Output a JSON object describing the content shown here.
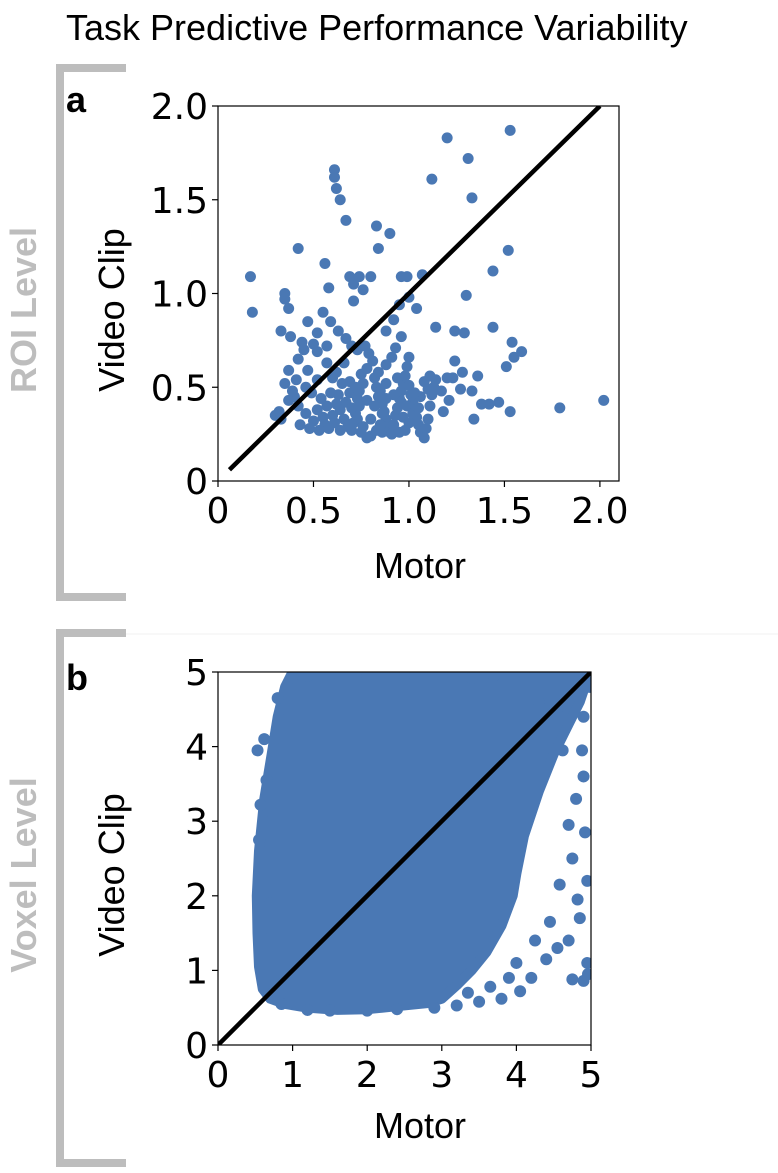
{
  "figure": {
    "title": "Task Predictive Performance Variability",
    "colors": {
      "points": "#4a78b4",
      "line": "#000000",
      "bracket": "#bdbdbd"
    }
  },
  "chart_data": [
    {
      "type": "scatter",
      "panel_letter": "a",
      "level_label": "ROI Level",
      "xlabel": "Motor",
      "ylabel": "Video Clip",
      "xlim": [
        0,
        2.1
      ],
      "ylim": [
        0,
        2.0
      ],
      "xticks": [
        0,
        0.5,
        1.0,
        1.5,
        2.0
      ],
      "xtick_labels": [
        "0",
        "0.5",
        "1.0",
        "1.5",
        "2.0"
      ],
      "yticks": [
        0,
        0.5,
        1.0,
        1.5,
        2.0
      ],
      "ytick_labels": [
        "0",
        "0.5",
        "1.0",
        "1.5",
        "2.0"
      ],
      "grid": false,
      "reference_line": [
        [
          0.06,
          0.06
        ],
        [
          2.0,
          2.0
        ]
      ],
      "points": [
        [
          0.17,
          1.09
        ],
        [
          0.18,
          0.9
        ],
        [
          0.35,
          1.0
        ],
        [
          0.35,
          0.97
        ],
        [
          0.37,
          0.92
        ],
        [
          0.42,
          1.24
        ],
        [
          0.47,
          0.85
        ],
        [
          0.44,
          0.74
        ],
        [
          0.33,
          0.8
        ],
        [
          0.38,
          0.77
        ],
        [
          0.37,
          0.59
        ],
        [
          0.42,
          0.65
        ],
        [
          0.47,
          0.59
        ],
        [
          0.52,
          0.54
        ],
        [
          0.52,
          0.69
        ],
        [
          0.57,
          0.63
        ],
        [
          0.57,
          0.72
        ],
        [
          0.52,
          0.79
        ],
        [
          0.5,
          0.73
        ],
        [
          0.45,
          0.7
        ],
        [
          0.35,
          0.52
        ],
        [
          0.4,
          0.45
        ],
        [
          0.37,
          0.43
        ],
        [
          0.3,
          0.35
        ],
        [
          0.33,
          0.33
        ],
        [
          0.32,
          0.37
        ],
        [
          0.42,
          0.4
        ],
        [
          0.46,
          0.36
        ],
        [
          0.5,
          0.32
        ],
        [
          0.52,
          0.38
        ],
        [
          0.55,
          0.34
        ],
        [
          0.56,
          0.3
        ],
        [
          0.58,
          0.28
        ],
        [
          0.61,
          0.31
        ],
        [
          0.6,
          0.35
        ],
        [
          0.62,
          0.41
        ],
        [
          0.64,
          0.38
        ],
        [
          0.66,
          0.33
        ],
        [
          0.68,
          0.29
        ],
        [
          0.7,
          0.27
        ],
        [
          0.71,
          0.31
        ],
        [
          0.72,
          0.36
        ],
        [
          0.73,
          0.44
        ],
        [
          0.74,
          0.48
        ],
        [
          0.76,
          0.52
        ],
        [
          0.75,
          0.57
        ],
        [
          0.78,
          0.6
        ],
        [
          0.79,
          0.68
        ],
        [
          0.81,
          0.64
        ],
        [
          0.82,
          0.55
        ],
        [
          0.83,
          0.5
        ],
        [
          0.84,
          0.45
        ],
        [
          0.86,
          0.41
        ],
        [
          0.87,
          0.37
        ],
        [
          0.88,
          0.33
        ],
        [
          0.89,
          0.29
        ],
        [
          0.9,
          0.26
        ],
        [
          0.92,
          0.3
        ],
        [
          0.93,
          0.35
        ],
        [
          0.94,
          0.39
        ],
        [
          0.95,
          0.44
        ],
        [
          0.96,
          0.48
        ],
        [
          0.97,
          0.52
        ],
        [
          0.98,
          0.56
        ],
        [
          0.99,
          0.61
        ],
        [
          1.0,
          0.66
        ],
        [
          1.01,
          0.46
        ],
        [
          1.02,
          0.42
        ],
        [
          1.03,
          0.38
        ],
        [
          1.04,
          0.34
        ],
        [
          1.05,
          0.3
        ],
        [
          1.06,
          0.26
        ],
        [
          1.08,
          0.23
        ],
        [
          1.09,
          0.28
        ],
        [
          1.1,
          0.33
        ],
        [
          1.11,
          0.4
        ],
        [
          1.12,
          0.46
        ],
        [
          1.13,
          0.5
        ],
        [
          1.14,
          0.54
        ],
        [
          0.8,
          0.24
        ],
        [
          0.83,
          0.27
        ],
        [
          0.86,
          0.26
        ],
        [
          0.91,
          0.25
        ],
        [
          0.95,
          0.26
        ],
        [
          0.98,
          0.27
        ],
        [
          0.69,
          0.47
        ],
        [
          0.65,
          0.52
        ],
        [
          0.62,
          0.58
        ],
        [
          0.6,
          0.55
        ],
        [
          0.63,
          0.46
        ],
        [
          0.67,
          0.42
        ],
        [
          0.7,
          0.39
        ],
        [
          0.73,
          0.33
        ],
        [
          0.76,
          0.29
        ],
        [
          0.78,
          0.23
        ],
        [
          0.84,
          0.58
        ],
        [
          0.88,
          0.62
        ],
        [
          0.91,
          0.66
        ],
        [
          0.93,
          0.71
        ],
        [
          0.88,
          0.52
        ],
        [
          0.85,
          0.48
        ],
        [
          0.92,
          0.46
        ],
        [
          0.96,
          0.42
        ],
        [
          0.99,
          0.4
        ],
        [
          1.02,
          0.36
        ],
        [
          1.05,
          0.39
        ],
        [
          0.61,
          1.66
        ],
        [
          0.61,
          1.62
        ],
        [
          0.62,
          1.56
        ],
        [
          0.64,
          1.5
        ],
        [
          0.67,
          1.39
        ],
        [
          0.69,
          1.09
        ],
        [
          0.71,
          1.05
        ],
        [
          0.58,
          1.03
        ],
        [
          0.55,
          0.9
        ],
        [
          0.59,
          0.85
        ],
        [
          0.63,
          0.8
        ],
        [
          0.67,
          0.76
        ],
        [
          0.7,
          0.72
        ],
        [
          0.73,
          0.7
        ],
        [
          0.77,
          0.72
        ],
        [
          0.56,
          1.16
        ],
        [
          0.71,
          0.96
        ],
        [
          0.74,
          1.09
        ],
        [
          0.76,
          1.02
        ],
        [
          0.8,
          1.09
        ],
        [
          0.84,
          1.24
        ],
        [
          0.83,
          1.36
        ],
        [
          0.9,
          1.32
        ],
        [
          0.96,
          1.09
        ],
        [
          0.99,
          1.09
        ],
        [
          1.0,
          0.98
        ],
        [
          0.95,
          0.94
        ],
        [
          0.92,
          0.86
        ],
        [
          0.88,
          0.8
        ],
        [
          0.96,
          0.77
        ],
        [
          1.04,
          0.92
        ],
        [
          1.07,
          1.1
        ],
        [
          1.12,
          1.61
        ],
        [
          1.2,
          1.83
        ],
        [
          1.31,
          1.72
        ],
        [
          1.33,
          1.51
        ],
        [
          1.44,
          1.12
        ],
        [
          1.53,
          1.87
        ],
        [
          1.52,
          1.23
        ],
        [
          1.3,
          0.99
        ],
        [
          1.14,
          0.82
        ],
        [
          1.24,
          0.8
        ],
        [
          1.29,
          0.79
        ],
        [
          1.24,
          0.64
        ],
        [
          1.2,
          0.55
        ],
        [
          1.27,
          0.49
        ],
        [
          1.33,
          0.48
        ],
        [
          1.36,
          0.56
        ],
        [
          1.38,
          0.41
        ],
        [
          1.34,
          0.33
        ],
        [
          1.42,
          0.41
        ],
        [
          1.47,
          0.42
        ],
        [
          1.51,
          0.61
        ],
        [
          1.55,
          0.66
        ],
        [
          1.59,
          0.69
        ],
        [
          1.54,
          0.74
        ],
        [
          1.53,
          0.37
        ],
        [
          1.44,
          0.82
        ],
        [
          1.79,
          0.39
        ],
        [
          2.02,
          0.43
        ],
        [
          1.17,
          0.48
        ],
        [
          1.21,
          0.43
        ],
        [
          1.18,
          0.37
        ],
        [
          1.23,
          0.55
        ],
        [
          1.28,
          0.58
        ],
        [
          0.86,
          0.36
        ],
        [
          0.82,
          0.4
        ],
        [
          0.78,
          0.43
        ],
        [
          0.74,
          0.4
        ],
        [
          0.8,
          0.33
        ],
        [
          0.88,
          0.44
        ],
        [
          0.94,
          0.55
        ],
        [
          1.0,
          0.51
        ],
        [
          1.06,
          0.45
        ],
        [
          1.1,
          0.49
        ],
        [
          1.08,
          0.53
        ],
        [
          1.03,
          0.47
        ],
        [
          0.97,
          0.34
        ],
        [
          0.66,
          0.63
        ],
        [
          0.69,
          0.53
        ],
        [
          0.72,
          0.5
        ],
        [
          0.59,
          0.47
        ],
        [
          0.57,
          0.4
        ],
        [
          0.54,
          0.44
        ],
        [
          0.49,
          0.47
        ],
        [
          0.46,
          0.5
        ],
        [
          0.41,
          0.54
        ],
        [
          0.39,
          0.48
        ],
        [
          0.43,
          0.3
        ],
        [
          0.48,
          0.28
        ],
        [
          0.53,
          0.27
        ],
        [
          0.64,
          0.27
        ],
        [
          0.75,
          0.26
        ],
        [
          0.85,
          0.3
        ],
        [
          1.0,
          0.31
        ],
        [
          1.11,
          0.56
        ]
      ]
    },
    {
      "type": "scatter",
      "panel_letter": "b",
      "level_label": "Voxel Level",
      "xlabel": "Motor",
      "ylabel": "Video Clip",
      "xlim": [
        0,
        5
      ],
      "ylim": [
        0,
        5
      ],
      "xticks": [
        0,
        1,
        2,
        3,
        4,
        5
      ],
      "xtick_labels": [
        "0",
        "1",
        "2",
        "3",
        "4",
        "5"
      ],
      "yticks": [
        0,
        1,
        2,
        3,
        4,
        5
      ],
      "ytick_labels": [
        "0",
        "1",
        "2",
        "3",
        "4",
        "5"
      ],
      "grid": false,
      "reference_line": [
        [
          0,
          0
        ],
        [
          5,
          5
        ]
      ],
      "dense_region": {
        "outline": [
          [
            0.55,
            1.05
          ],
          [
            0.6,
            0.75
          ],
          [
            0.7,
            0.62
          ],
          [
            0.9,
            0.55
          ],
          [
            1.2,
            0.5
          ],
          [
            1.6,
            0.47
          ],
          [
            2.0,
            0.48
          ],
          [
            2.4,
            0.52
          ],
          [
            2.8,
            0.56
          ],
          [
            3.0,
            0.62
          ],
          [
            3.2,
            0.8
          ],
          [
            3.4,
            1.0
          ],
          [
            3.6,
            1.25
          ],
          [
            3.8,
            1.6
          ],
          [
            3.95,
            2.0
          ],
          [
            4.0,
            2.3
          ],
          [
            4.1,
            2.8
          ],
          [
            4.3,
            3.4
          ],
          [
            4.5,
            3.9
          ],
          [
            4.7,
            4.3
          ],
          [
            4.85,
            4.6
          ],
          [
            4.95,
            4.9
          ],
          [
            4.95,
            5.0
          ],
          [
            1.0,
            5.0
          ],
          [
            0.9,
            4.8
          ],
          [
            0.8,
            4.4
          ],
          [
            0.72,
            3.9
          ],
          [
            0.62,
            3.3
          ],
          [
            0.55,
            2.6
          ],
          [
            0.52,
            2.0
          ],
          [
            0.53,
            1.5
          ]
        ],
        "points": [
          [
            0.53,
            3.95
          ],
          [
            0.55,
            2.75
          ],
          [
            0.57,
            3.22
          ],
          [
            0.58,
            1.45
          ],
          [
            0.62,
            4.1
          ],
          [
            0.65,
            3.55
          ],
          [
            0.7,
            1.9
          ],
          [
            0.73,
            0.7
          ],
          [
            0.8,
            4.65
          ],
          [
            1.0,
            4.95
          ],
          [
            1.2,
            4.95
          ],
          [
            1.5,
            4.96
          ],
          [
            2.0,
            4.95
          ],
          [
            2.5,
            4.96
          ],
          [
            3.0,
            4.95
          ],
          [
            3.4,
            4.92
          ],
          [
            3.7,
            4.95
          ],
          [
            4.1,
            4.98
          ],
          [
            4.4,
            4.95
          ],
          [
            4.7,
            4.96
          ],
          [
            4.95,
            4.98
          ],
          [
            4.8,
            4.7
          ],
          [
            4.6,
            4.55
          ],
          [
            4.9,
            4.4
          ],
          [
            4.3,
            4.6
          ],
          [
            4.9,
            3.6
          ],
          [
            4.8,
            3.3
          ],
          [
            4.92,
            2.85
          ],
          [
            4.75,
            2.5
          ],
          [
            4.95,
            2.2
          ],
          [
            4.85,
            1.7
          ],
          [
            4.7,
            1.4
          ],
          [
            4.95,
            1.1
          ],
          [
            4.9,
            0.86
          ],
          [
            4.55,
            1.3
          ],
          [
            4.4,
            1.15
          ],
          [
            4.2,
            0.9
          ],
          [
            4.05,
            0.72
          ],
          [
            3.8,
            0.62
          ],
          [
            3.5,
            0.58
          ],
          [
            3.2,
            0.53
          ],
          [
            2.9,
            0.5
          ],
          [
            1.2,
            0.47
          ],
          [
            1.5,
            0.46
          ],
          [
            2.0,
            0.46
          ],
          [
            2.4,
            0.48
          ],
          [
            0.85,
            0.55
          ],
          [
            4.98,
            4.8
          ],
          [
            4.62,
            3.95
          ],
          [
            4.88,
            3.95
          ],
          [
            4.7,
            2.95
          ],
          [
            4.58,
            2.15
          ],
          [
            4.82,
            1.95
          ],
          [
            4.45,
            1.65
          ],
          [
            4.25,
            1.4
          ],
          [
            4.0,
            1.1
          ],
          [
            3.9,
            0.9
          ],
          [
            3.65,
            0.78
          ],
          [
            3.35,
            0.7
          ],
          [
            4.96,
            0.95
          ],
          [
            4.75,
            0.88
          ]
        ]
      }
    }
  ]
}
